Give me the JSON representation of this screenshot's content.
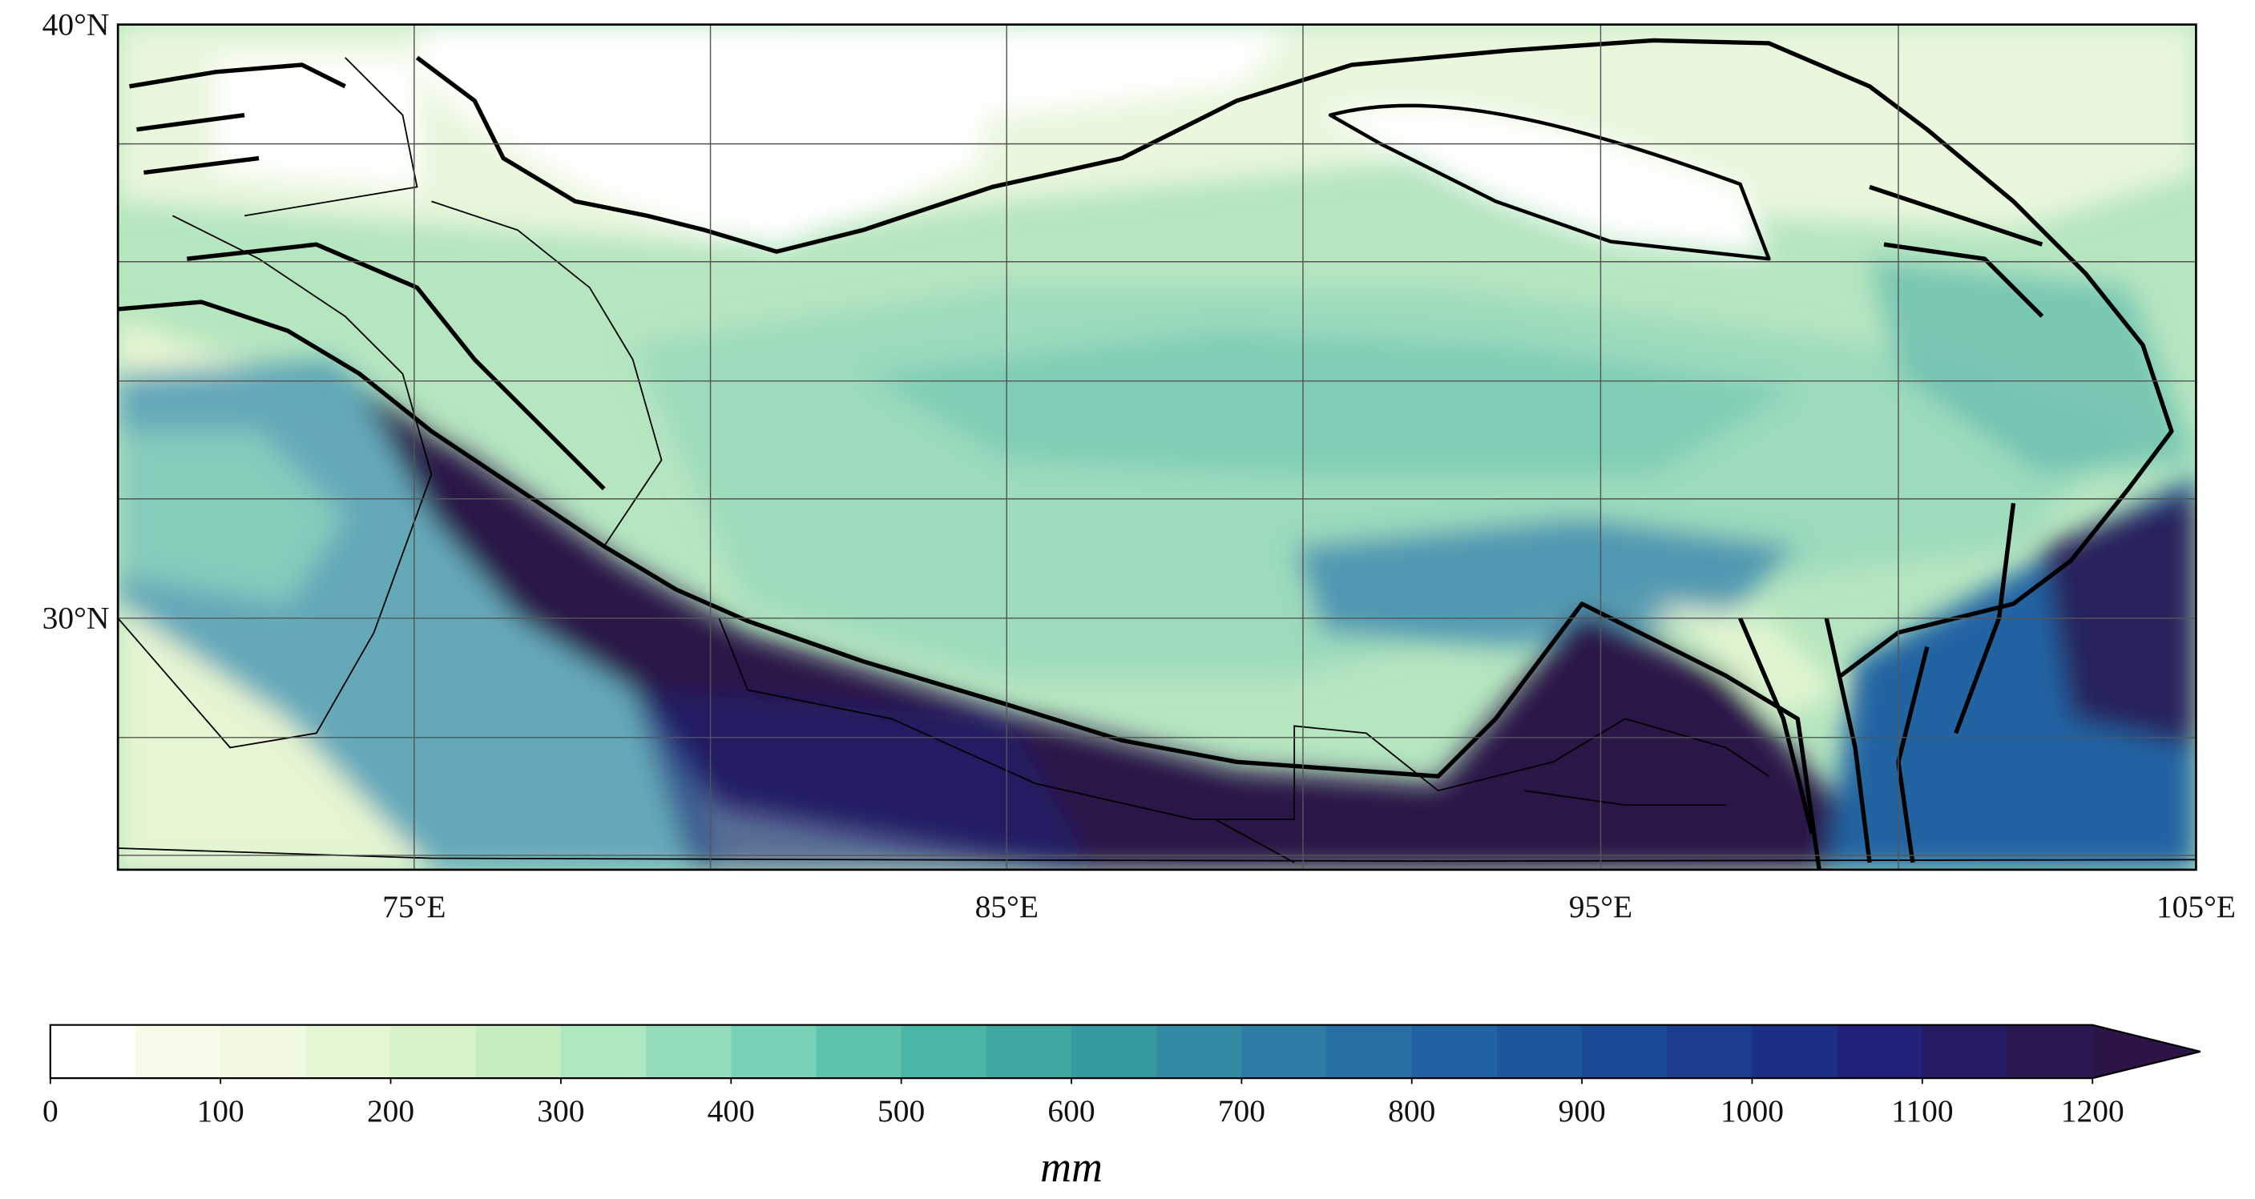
{
  "map": {
    "lat_labels": [
      "40°N",
      "30°N"
    ],
    "lon_labels": [
      "75°E",
      "85°E",
      "95°E",
      "105°E"
    ],
    "colorbar": {
      "ticks": [
        0,
        100,
        200,
        300,
        400,
        500,
        600,
        700,
        800,
        900,
        1000,
        1100,
        1200
      ],
      "unit": "mm",
      "colors": [
        "#ffffff",
        "#f7fce8",
        "#effae0",
        "#e4f6d3",
        "#d7f2c8",
        "#c6edc0",
        "#aee6be",
        "#94dcbb",
        "#78d1b6",
        "#5dc3ad",
        "#49b5a5",
        "#3ea7a0",
        "#3799a0",
        "#328ba2",
        "#2c7ca5",
        "#2670a6",
        "#2063a2",
        "#1c569c",
        "#1a4a95",
        "#1a3d8e",
        "#1c2f85",
        "#1f2278",
        "#261b63",
        "#2a1850"
      ],
      "extend_color": "#2c1546"
    }
  }
}
